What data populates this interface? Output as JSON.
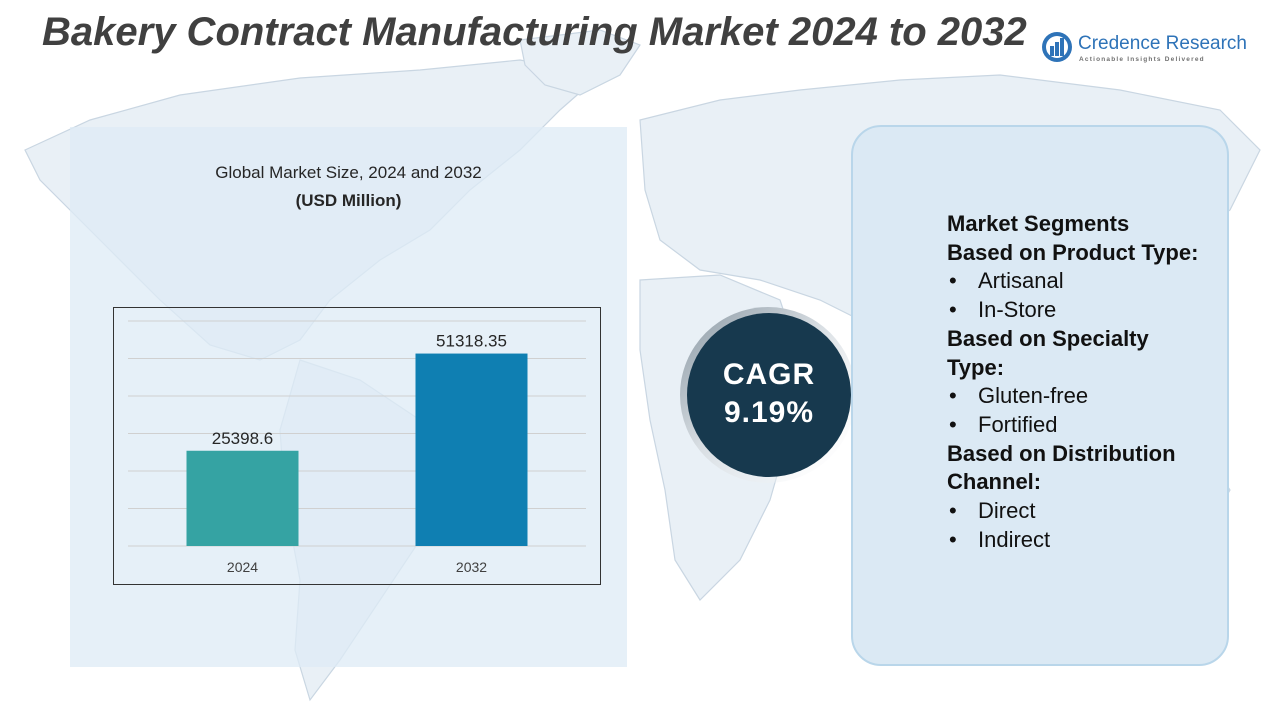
{
  "title": "Bakery Contract Manufacturing Market 2024 to 2032",
  "logo": {
    "name": "Credence Research",
    "tagline": "Actionable Insights Delivered"
  },
  "chart_heading": {
    "line1": "Global Market Size, 2024 and 2032",
    "line2": "(USD Million)"
  },
  "chart_data": {
    "type": "bar",
    "title": "Global Market Size, 2024 and 2032",
    "ylabel": "(USD Million)",
    "categories": [
      "2024",
      "2032"
    ],
    "values": [
      25398.6,
      51318.35
    ],
    "value_labels": [
      "25398.6",
      "51318.35"
    ],
    "ylim": [
      0,
      60000
    ],
    "grid": true,
    "colors": [
      "#35a3a3",
      "#0f7fb2"
    ]
  },
  "cagr": {
    "label": "CAGR",
    "value": "9.19%"
  },
  "segments": {
    "heading": "Market Segments",
    "product_type": {
      "heading": "Based on Product Type:",
      "items": [
        "Artisanal",
        "In-Store"
      ]
    },
    "specialty_type": {
      "heading_line1": "Based on Specialty",
      "heading_line2": "Type:",
      "items": [
        "Gluten-free",
        "Fortified"
      ]
    },
    "distribution_channel": {
      "heading_line1": "Based on Distribution",
      "heading_line2": "Channel:",
      "items": [
        "Direct",
        "Indirect"
      ]
    },
    "bullet": "•"
  },
  "colors": {
    "title": "#404040",
    "brand": "#2e73b8",
    "cagr_circle": "#17394e",
    "panel_bg": "#dbe9f4"
  }
}
